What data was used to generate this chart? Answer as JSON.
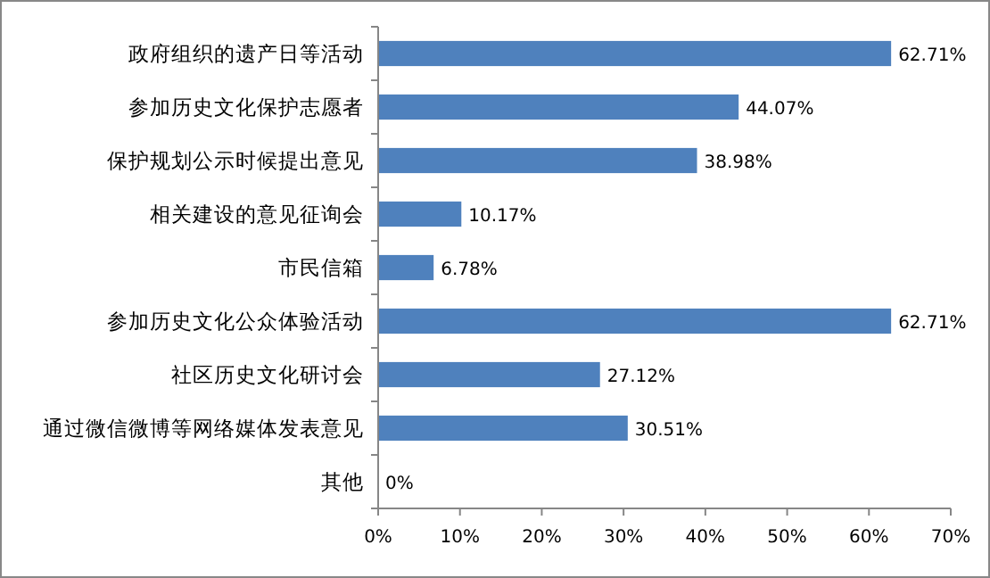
{
  "chart_data": {
    "type": "bar",
    "orientation": "horizontal",
    "categories": [
      "政府组织的遗产日等活动",
      "参加历史文化保护志愿者",
      "保护规划公示时候提出意见",
      "相关建设的意见征询会",
      "市民信箱",
      "参加历史文化公众体验活动",
      "社区历史文化研讨会",
      "通过微信微博等网络媒体发表意见",
      "其他"
    ],
    "values": [
      62.71,
      44.07,
      38.98,
      10.17,
      6.78,
      62.71,
      27.12,
      30.51,
      0
    ],
    "value_labels": [
      "62.71%",
      "44.07%",
      "38.98%",
      "10.17%",
      "6.78%",
      "62.71%",
      "27.12%",
      "30.51%",
      "0%"
    ],
    "color": "#4f81bd",
    "xlim": [
      0,
      70
    ],
    "xticks": [
      {
        "value": 0,
        "label": "0%"
      },
      {
        "value": 10,
        "label": "10%"
      },
      {
        "value": 20,
        "label": "20%"
      },
      {
        "value": 30,
        "label": "30%"
      },
      {
        "value": 40,
        "label": "40%"
      },
      {
        "value": 50,
        "label": "50%"
      },
      {
        "value": 60,
        "label": "60%"
      },
      {
        "value": 70,
        "label": "70%"
      }
    ],
    "grid": false
  }
}
